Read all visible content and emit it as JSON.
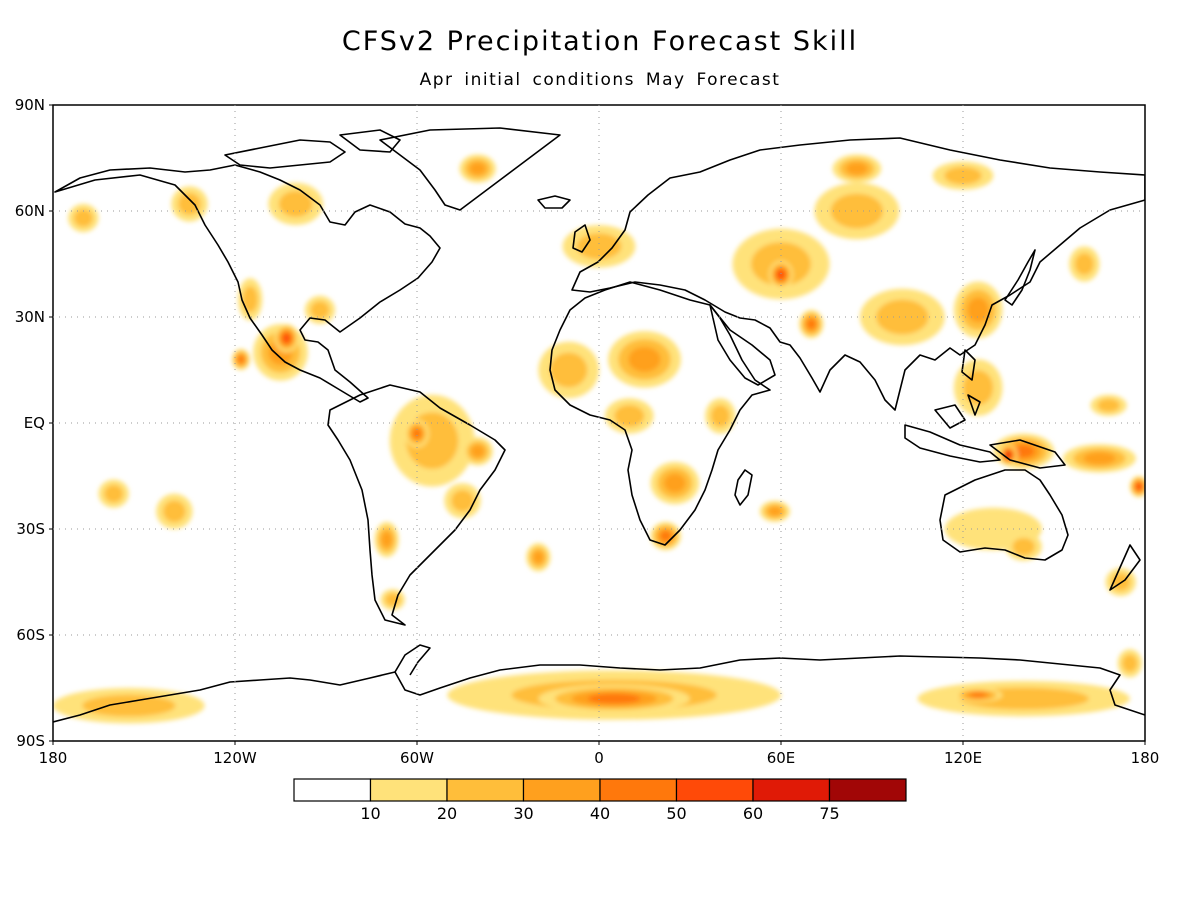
{
  "title": "CFSv2 Precipitation Forecast Skill",
  "subtitle": "Apr initial conditions   May Forecast",
  "axes": {
    "lat_labels": [
      "90N",
      "60N",
      "30N",
      "EQ",
      "30S",
      "60S",
      "90S"
    ],
    "lat_values": [
      90,
      60,
      30,
      0,
      -30,
      -60,
      -90
    ],
    "lon_labels": [
      "180",
      "120W",
      "60W",
      "0",
      "60E",
      "120E",
      "180"
    ],
    "lon_values": [
      -180,
      -120,
      -60,
      0,
      60,
      120,
      180
    ]
  },
  "colorbar": {
    "colors": [
      "#ffffff",
      "#ffe27a",
      "#ffbe3a",
      "#ffa01e",
      "#ff780c",
      "#ff4a08",
      "#e01a06",
      "#a10606"
    ],
    "labels": [
      "10",
      "20",
      "30",
      "40",
      "50",
      "60",
      "75"
    ]
  },
  "skill_regions": [
    {
      "lon": -105,
      "lat": 20,
      "rx": 9,
      "ry": 8,
      "level": 3
    },
    {
      "lon": -103,
      "lat": 24,
      "rx": 4,
      "ry": 4,
      "level": 5
    },
    {
      "lon": -55,
      "lat": -5,
      "rx": 14,
      "ry": 13,
      "level": 2
    },
    {
      "lon": -60,
      "lat": -3,
      "rx": 4,
      "ry": 4,
      "level": 4
    },
    {
      "lon": -40,
      "lat": -8,
      "rx": 5,
      "ry": 4,
      "level": 3
    },
    {
      "lon": -45,
      "lat": -22,
      "rx": 6,
      "ry": 5,
      "level": 2
    },
    {
      "lon": -70,
      "lat": -33,
      "rx": 4,
      "ry": 5,
      "level": 3
    },
    {
      "lon": -68,
      "lat": -50,
      "rx": 4,
      "ry": 3,
      "level": 2
    },
    {
      "lon": -135,
      "lat": 62,
      "rx": 6,
      "ry": 5,
      "level": 2
    },
    {
      "lon": -100,
      "lat": 62,
      "rx": 9,
      "ry": 6,
      "level": 2
    },
    {
      "lon": -115,
      "lat": 35,
      "rx": 4,
      "ry": 6,
      "level": 2
    },
    {
      "lon": -92,
      "lat": 32,
      "rx": 5,
      "ry": 4,
      "level": 2
    },
    {
      "lon": -40,
      "lat": 72,
      "rx": 6,
      "ry": 4,
      "level": 3
    },
    {
      "lon": -118,
      "lat": 18,
      "rx": 3,
      "ry": 3,
      "level": 4
    },
    {
      "lon": -170,
      "lat": 58,
      "rx": 5,
      "ry": 4,
      "level": 2
    },
    {
      "lon": -160,
      "lat": -20,
      "rx": 5,
      "ry": 4,
      "level": 2
    },
    {
      "lon": -140,
      "lat": -25,
      "rx": 6,
      "ry": 5,
      "level": 2
    },
    {
      "lon": -10,
      "lat": 15,
      "rx": 10,
      "ry": 8,
      "level": 2
    },
    {
      "lon": 15,
      "lat": 18,
      "rx": 12,
      "ry": 8,
      "level": 3
    },
    {
      "lon": 10,
      "lat": 2,
      "rx": 8,
      "ry": 5,
      "level": 2
    },
    {
      "lon": 25,
      "lat": -17,
      "rx": 8,
      "ry": 6,
      "level": 3
    },
    {
      "lon": 22,
      "lat": -32,
      "rx": 5,
      "ry": 4,
      "level": 4
    },
    {
      "lon": 40,
      "lat": 2,
      "rx": 5,
      "ry": 5,
      "level": 2
    },
    {
      "lon": 58,
      "lat": -25,
      "rx": 5,
      "ry": 3,
      "level": 3
    },
    {
      "lon": 0,
      "lat": 50,
      "rx": 12,
      "ry": 6,
      "level": 2
    },
    {
      "lon": 60,
      "lat": 45,
      "rx": 16,
      "ry": 10,
      "level": 2
    },
    {
      "lon": 60,
      "lat": 42,
      "rx": 4,
      "ry": 4,
      "level": 5
    },
    {
      "lon": 70,
      "lat": 28,
      "rx": 4,
      "ry": 4,
      "level": 4
    },
    {
      "lon": 85,
      "lat": 60,
      "rx": 14,
      "ry": 8,
      "level": 2
    },
    {
      "lon": 85,
      "lat": 72,
      "rx": 8,
      "ry": 4,
      "level": 3
    },
    {
      "lon": 120,
      "lat": 70,
      "rx": 10,
      "ry": 4,
      "level": 2
    },
    {
      "lon": 125,
      "lat": 32,
      "rx": 8,
      "ry": 8,
      "level": 3
    },
    {
      "lon": 100,
      "lat": 30,
      "rx": 14,
      "ry": 8,
      "level": 2
    },
    {
      "lon": 125,
      "lat": 10,
      "rx": 8,
      "ry": 8,
      "level": 2
    },
    {
      "lon": 140,
      "lat": -8,
      "rx": 10,
      "ry": 5,
      "level": 4
    },
    {
      "lon": 135,
      "lat": -9,
      "rx": 3,
      "ry": 3,
      "level": 6
    },
    {
      "lon": 165,
      "lat": -10,
      "rx": 12,
      "ry": 4,
      "level": 3
    },
    {
      "lon": 178,
      "lat": -18,
      "rx": 3,
      "ry": 3,
      "level": 5
    },
    {
      "lon": 130,
      "lat": -30,
      "rx": 16,
      "ry": 6,
      "level": 1
    },
    {
      "lon": 140,
      "lat": -35,
      "rx": 6,
      "ry": 4,
      "level": 2
    },
    {
      "lon": 172,
      "lat": -45,
      "rx": 5,
      "ry": 4,
      "level": 2
    },
    {
      "lon": 160,
      "lat": 45,
      "rx": 5,
      "ry": 5,
      "level": 2
    },
    {
      "lon": 168,
      "lat": 5,
      "rx": 6,
      "ry": 3,
      "level": 2
    },
    {
      "lon": -20,
      "lat": -38,
      "rx": 4,
      "ry": 4,
      "level": 3
    },
    {
      "lon": 5,
      "lat": -77,
      "rx": 55,
      "ry": 7,
      "level": 2
    },
    {
      "lon": 5,
      "lat": -78,
      "rx": 25,
      "ry": 4,
      "level": 4
    },
    {
      "lon": 140,
      "lat": -78,
      "rx": 35,
      "ry": 5,
      "level": 2
    },
    {
      "lon": 125,
      "lat": -77,
      "rx": 8,
      "ry": 2,
      "level": 4
    },
    {
      "lon": -155,
      "lat": -80,
      "rx": 25,
      "ry": 5,
      "level": 2
    },
    {
      "lon": 175,
      "lat": -68,
      "rx": 4,
      "ry": 4,
      "level": 2
    }
  ]
}
